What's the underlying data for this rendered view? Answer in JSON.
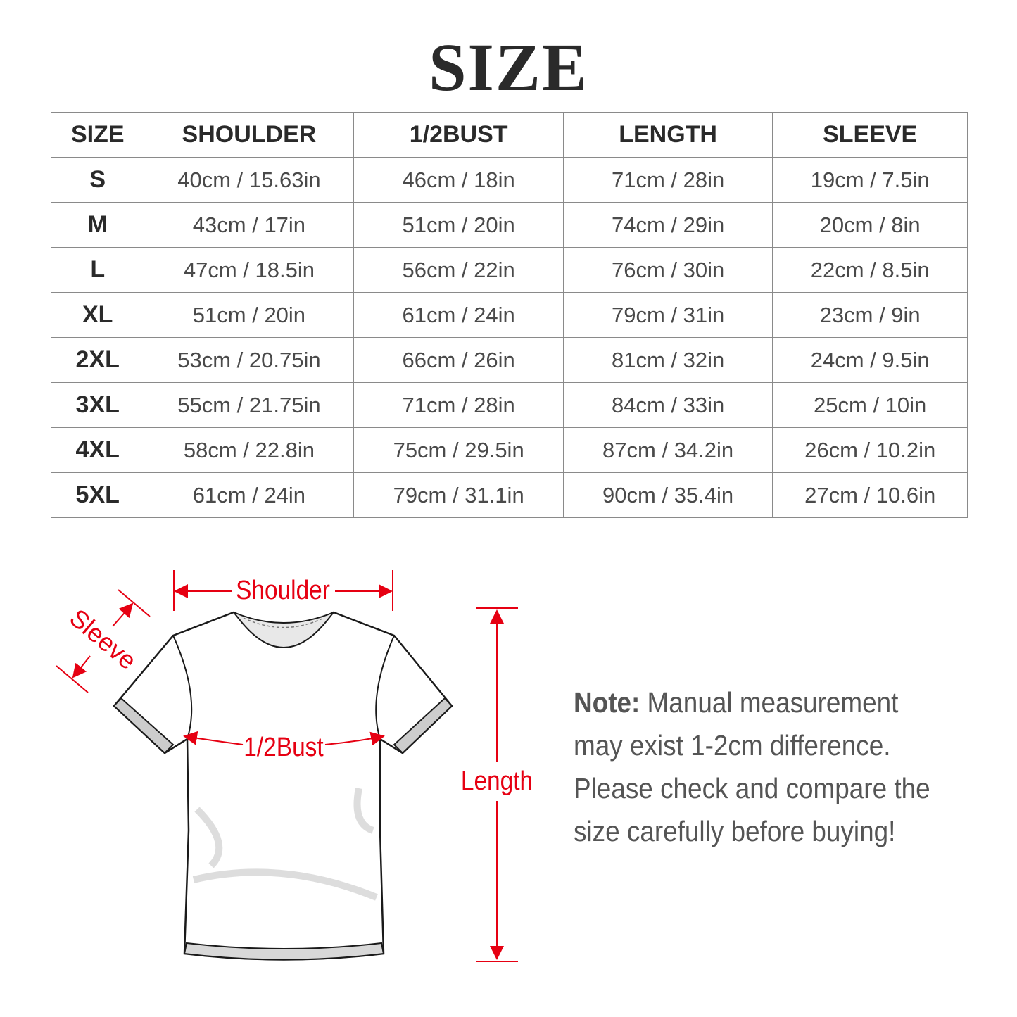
{
  "title": "SIZE",
  "table": {
    "headers": [
      "SIZE",
      "SHOULDER",
      "1/2BUST",
      "LENGTH",
      "SLEEVE"
    ],
    "rows": [
      [
        "S",
        "40cm / 15.63in",
        "46cm / 18in",
        "71cm / 28in",
        "19cm / 7.5in"
      ],
      [
        "M",
        "43cm / 17in",
        "51cm / 20in",
        "74cm / 29in",
        "20cm / 8in"
      ],
      [
        "L",
        "47cm / 18.5in",
        "56cm / 22in",
        "76cm / 30in",
        "22cm / 8.5in"
      ],
      [
        "XL",
        "51cm / 20in",
        "61cm / 24in",
        "79cm / 31in",
        "23cm / 9in"
      ],
      [
        "2XL",
        "53cm / 20.75in",
        "66cm / 26in",
        "81cm / 32in",
        "24cm / 9.5in"
      ],
      [
        "3XL",
        "55cm / 21.75in",
        "71cm / 28in",
        "84cm / 33in",
        "25cm / 10in"
      ],
      [
        "4XL",
        "58cm / 22.8in",
        "75cm / 29.5in",
        "87cm / 34.2in",
        "26cm / 10.2in"
      ],
      [
        "5XL",
        "61cm / 24in",
        "79cm / 31.1in",
        "90cm / 35.4in",
        "27cm / 10.6in"
      ]
    ]
  },
  "diagram": {
    "shoulder_label": "Shoulder",
    "sleeve_label": "Sleeve",
    "bust_label": "1/2Bust",
    "length_label": "Length",
    "accent_color": "#e60012"
  },
  "note": {
    "label": "Note:",
    "text": " Manual measurement may exist 1-2cm difference. Please check and compare the size carefully before buying!"
  }
}
